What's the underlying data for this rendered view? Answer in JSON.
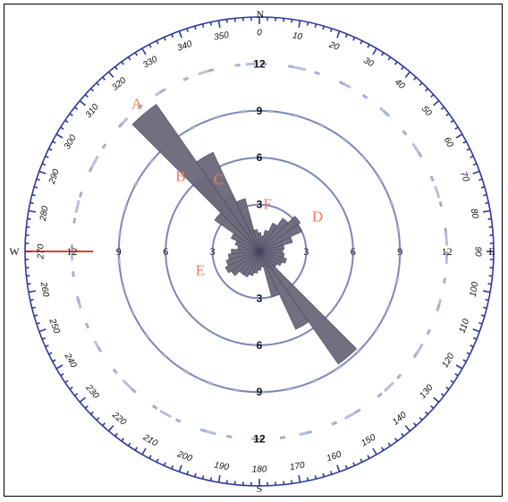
{
  "chart_data": {
    "type": "rose",
    "title": "",
    "cardinals": {
      "north": "N",
      "south": "S",
      "west": "W",
      "east": "E"
    },
    "degree_labels": [
      "0",
      "10",
      "20",
      "30",
      "40",
      "50",
      "60",
      "70",
      "80",
      "90",
      "100",
      "110",
      "120",
      "130",
      "140",
      "150",
      "160",
      "170",
      "180",
      "190",
      "200",
      "210",
      "220",
      "230",
      "240",
      "250",
      "260",
      "270",
      "280",
      "290",
      "300",
      "310",
      "320",
      "330",
      "340",
      "350"
    ],
    "radial_ticks": [
      3,
      6,
      9,
      12
    ],
    "radial_max": 15,
    "bin_width_deg": 10,
    "bins": [
      {
        "dir": 0,
        "value": 1.2
      },
      {
        "dir": 10,
        "value": 1.0
      },
      {
        "dir": 20,
        "value": 1.4
      },
      {
        "dir": 30,
        "value": 2.0
      },
      {
        "dir": 40,
        "value": 2.6
      },
      {
        "dir": 50,
        "value": 3.2
      },
      {
        "dir": 60,
        "value": 3.0
      },
      {
        "dir": 70,
        "value": 2.2
      },
      {
        "dir": 80,
        "value": 1.6
      },
      {
        "dir": 90,
        "value": 1.5
      },
      {
        "dir": 100,
        "value": 1.6
      },
      {
        "dir": 110,
        "value": 1.8
      },
      {
        "dir": 120,
        "value": 1.6
      },
      {
        "dir": 130,
        "value": 1.4
      },
      {
        "dir": 140,
        "value": 1.4
      },
      {
        "dir": 150,
        "value": 1.2
      },
      {
        "dir": 160,
        "value": 1.0
      },
      {
        "dir": 170,
        "value": 1.0
      },
      {
        "dir": 180,
        "value": 1.2
      },
      {
        "dir": 190,
        "value": 1.4
      },
      {
        "dir": 200,
        "value": 1.6
      },
      {
        "dir": 210,
        "value": 1.8
      },
      {
        "dir": 220,
        "value": 1.8
      },
      {
        "dir": 230,
        "value": 2.2
      },
      {
        "dir": 240,
        "value": 2.4
      },
      {
        "dir": 250,
        "value": 2.2
      },
      {
        "dir": 260,
        "value": 2.0
      },
      {
        "dir": 270,
        "value": 1.8
      },
      {
        "dir": 280,
        "value": 1.4
      },
      {
        "dir": 290,
        "value": 1.6
      },
      {
        "dir": 300,
        "value": 2.0
      },
      {
        "dir": 310,
        "value": 3.5
      },
      {
        "dir": 320,
        "value": 6.0
      },
      {
        "dir": 330,
        "value": 4.0
      },
      {
        "dir": 340,
        "value": 2.5
      },
      {
        "dir": 350,
        "value": 1.4
      }
    ],
    "axis_bins": [
      {
        "dir": 140,
        "value": 8.8
      },
      {
        "dir": 150,
        "value": 5.5
      },
      {
        "dir": 160,
        "value": 3.0
      },
      {
        "dir": 320,
        "value": 11.5
      },
      {
        "dir": 330,
        "value": 7.0
      },
      {
        "dir": 340,
        "value": 3.5
      }
    ],
    "annotations": [
      {
        "label": "A",
        "dir": 320,
        "r": 12.2
      },
      {
        "label": "B",
        "dir": 313,
        "r": 6.9
      },
      {
        "label": "C",
        "dir": 330,
        "r": 5.2
      },
      {
        "label": "D",
        "dir": 60,
        "r": 4.3
      },
      {
        "label": "E",
        "dir": 251,
        "r": 4.0
      },
      {
        "label": "F",
        "dir": 10,
        "r": 3.0
      }
    ],
    "colors": {
      "petal": "#6e6a7c",
      "ring": "#7b86b7",
      "outer_ring": "#30399c",
      "annotation": "#ee7a5a",
      "west_marker": "#cc0000"
    },
    "grid": true
  }
}
